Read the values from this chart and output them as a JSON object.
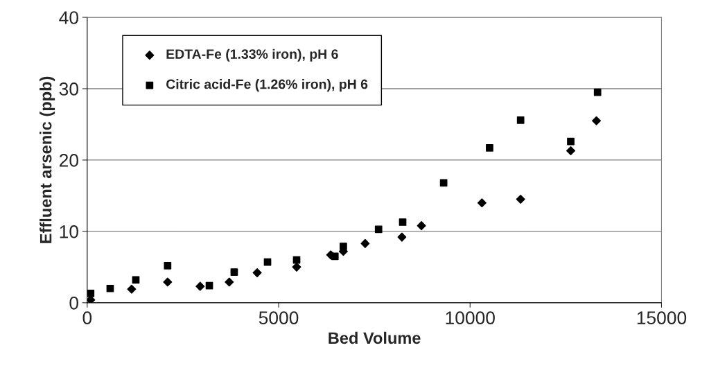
{
  "chart_data": {
    "type": "scatter",
    "xlabel": "Bed Volume",
    "ylabel": "Effluent arsenic (ppb)",
    "xlim": [
      0,
      15000
    ],
    "xticks": [
      0,
      5000,
      10000,
      15000
    ],
    "ylim": [
      0,
      40
    ],
    "yticks": [
      0,
      10,
      20,
      30,
      40
    ],
    "grid": "y",
    "legend": "top left",
    "series": [
      {
        "name": "EDTA-Fe (1.33% iron), pH 6",
        "color": "#000000",
        "marker": "diamond",
        "x": [
          90,
          1160,
          2100,
          2950,
          3710,
          4440,
          5470,
          6360,
          6690,
          7260,
          8220,
          8730,
          10310,
          11320,
          12630,
          13300
        ],
        "values": [
          0.4,
          1.9,
          2.9,
          2.3,
          2.9,
          4.2,
          5.0,
          6.7,
          7.2,
          8.3,
          9.2,
          10.8,
          14.0,
          14.5,
          21.3,
          25.5
        ]
      },
      {
        "name": "Citric acid-Fe (1.26% iron), pH 6",
        "color": "#000000",
        "marker": "square",
        "x": [
          90,
          600,
          1270,
          2100,
          3190,
          3840,
          4710,
          5470,
          6470,
          6690,
          7610,
          8240,
          9310,
          10510,
          11320,
          12630,
          13330
        ],
        "values": [
          1.3,
          2.0,
          3.2,
          5.2,
          2.4,
          4.3,
          5.7,
          6.0,
          6.5,
          7.9,
          10.3,
          11.3,
          16.8,
          21.7,
          25.6,
          22.6,
          29.5
        ]
      }
    ]
  }
}
